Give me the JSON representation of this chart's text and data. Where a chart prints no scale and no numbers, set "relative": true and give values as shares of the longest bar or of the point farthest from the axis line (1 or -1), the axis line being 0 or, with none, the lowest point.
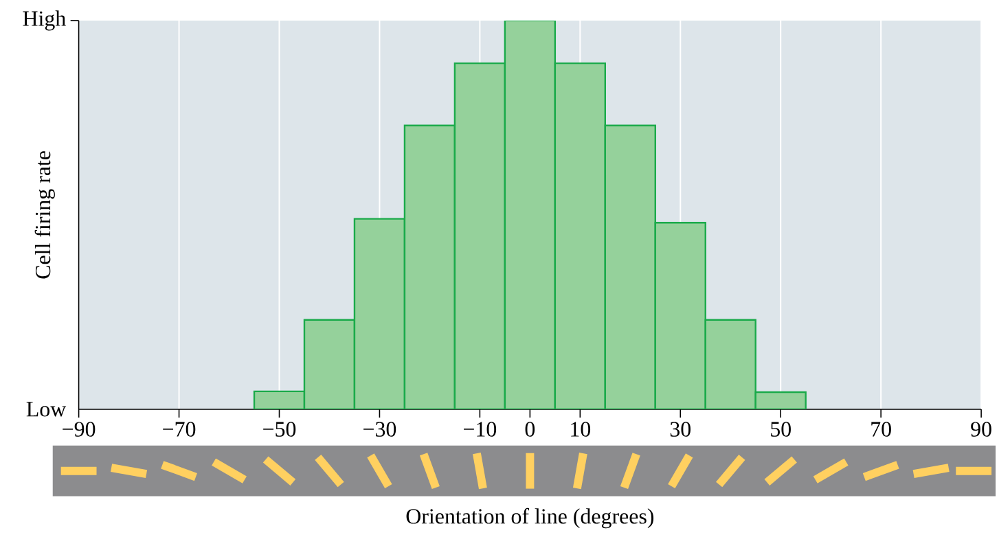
{
  "chart_data": {
    "type": "bar",
    "xlabel": "Orientation of line (degrees)",
    "ylabel": "Cell firing rate",
    "x": [
      -50,
      -40,
      -30,
      -20,
      -10,
      0,
      10,
      20,
      30,
      40,
      50
    ],
    "values": [
      0.046,
      0.23,
      0.49,
      0.73,
      0.89,
      1.0,
      0.89,
      0.73,
      0.48,
      0.23,
      0.044
    ],
    "color": "#95d19b",
    "relative": true,
    "annotations": [
      "Low",
      "High"
    ],
    "xlim": [
      -90,
      90
    ],
    "xticks": [
      {
        "value": -90,
        "label": "−90"
      },
      {
        "value": -70,
        "label": "−70"
      },
      {
        "value": -50,
        "label": "−50"
      },
      {
        "value": -30,
        "label": "−30"
      },
      {
        "value": -10,
        "label": "−10"
      },
      {
        "value": 0,
        "label": "0"
      },
      {
        "value": 10,
        "label": "10"
      },
      {
        "value": 30,
        "label": "30"
      },
      {
        "value": 50,
        "label": "50"
      },
      {
        "value": 70,
        "label": "70"
      },
      {
        "value": 90,
        "label": "90"
      }
    ],
    "grid": "x"
  }
}
